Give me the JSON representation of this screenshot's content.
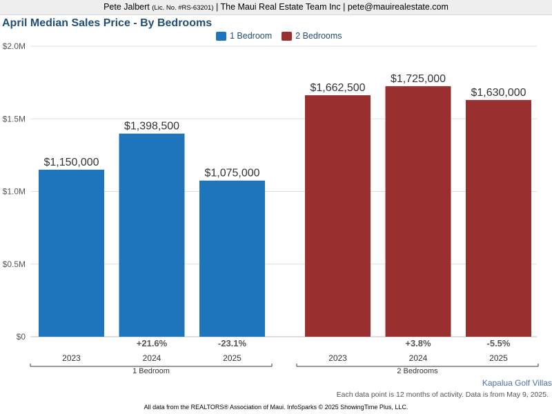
{
  "header": {
    "agent_name": "Pete Jalbert",
    "license": "(Lic. No. #RS-63201)",
    "company_and_email": "| The Maui Real Estate Team Inc | pete@mauirealestate.com"
  },
  "chart_data": {
    "type": "bar",
    "title": "April Median Sales Price - By Bedrooms",
    "ylim": [
      0,
      2000000
    ],
    "yticks": [
      {
        "value": 0,
        "label": "$0"
      },
      {
        "value": 500000,
        "label": "$0.5M"
      },
      {
        "value": 1000000,
        "label": "$1.0M"
      },
      {
        "value": 1500000,
        "label": "$1.5M"
      },
      {
        "value": 2000000,
        "label": "$2.0M"
      }
    ],
    "grid": true,
    "legend_position": "top-center",
    "series": [
      {
        "name": "1 Bedroom",
        "color": "#1f75bc",
        "group_label": "1 Bedroom",
        "categories": [
          "2023",
          "2024",
          "2025"
        ],
        "values": [
          1150000,
          1398500,
          1075000
        ],
        "value_labels": [
          "$1,150,000",
          "$1,398,500",
          "$1,075,000"
        ],
        "changes": [
          "",
          "+21.6%",
          "-23.1%"
        ]
      },
      {
        "name": "2 Bedrooms",
        "color": "#9a2f2f",
        "group_label": "2 Bedrooms",
        "categories": [
          "2023",
          "2024",
          "2025"
        ],
        "values": [
          1662500,
          1725000,
          1630000
        ],
        "value_labels": [
          "$1,662,500",
          "$1,725,000",
          "$1,630,000"
        ],
        "changes": [
          "",
          "+3.8%",
          "-5.5%"
        ]
      }
    ]
  },
  "footer": {
    "region": "Kapalua Golf Villas",
    "note": "Each data point is 12 months of activity. Data is from May 9, 2025.",
    "source": "All data from the REALTORS® Association of Maui. InfoSparks © 2025 ShowingTime Plus, LLC."
  }
}
